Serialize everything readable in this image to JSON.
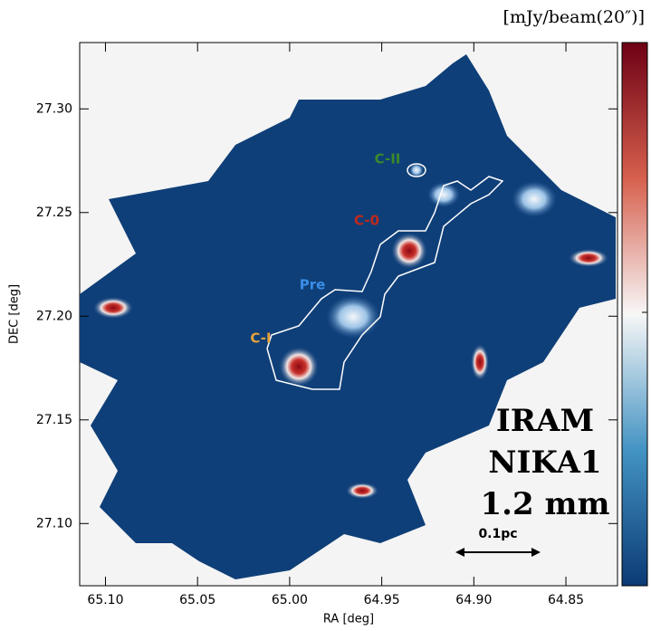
{
  "chart_data": {
    "type": "image",
    "colorbar_label": "[mJy/beam(20″)]",
    "xlabel": "RA [deg]",
    "ylabel": "DEC [deg]",
    "xlim": [
      65.114,
      64.822
    ],
    "xticks": [
      {
        "value": 65.1,
        "label": "65.10"
      },
      65.05,
      {
        "value": 65.0,
        "label": "65.00"
      },
      64.95,
      {
        "value": 64.9,
        "label": "64.90"
      },
      64.85
    ],
    "ylim": [
      27.07,
      27.332
    ],
    "yticks": [
      {
        "value": 27.1,
        "label": "27.10"
      },
      27.15,
      {
        "value": 27.2,
        "label": "27.20"
      },
      27.25,
      {
        "value": 27.3,
        "label": "27.30"
      }
    ],
    "annotations": [
      "C-II",
      "C-0",
      "Pre",
      "C-I"
    ],
    "instrument": [
      "IRAM",
      "NIKA1",
      "1.2 mm"
    ],
    "scale_bar": "0.1pc"
  }
}
